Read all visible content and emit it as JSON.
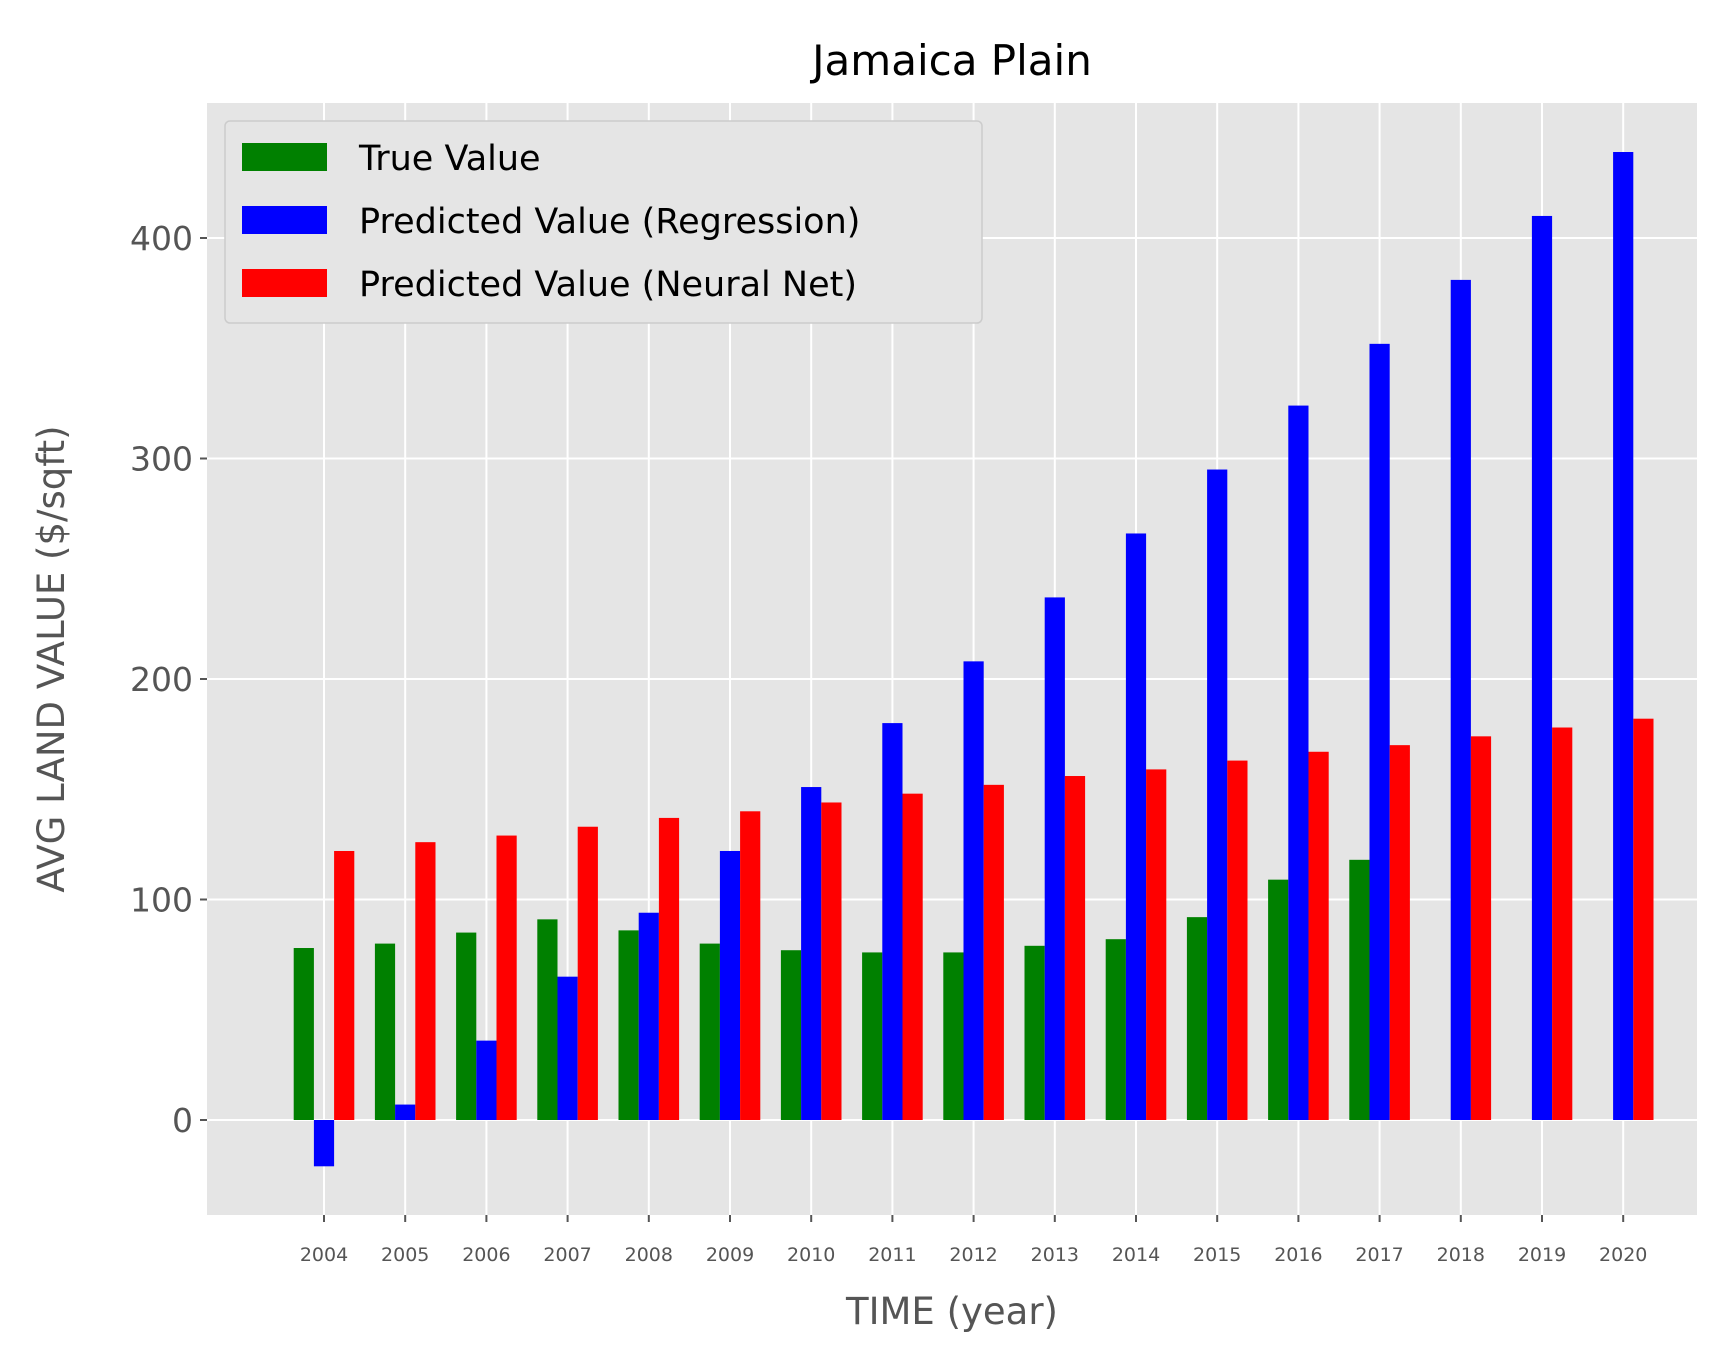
{
  "chart_data": {
    "type": "bar",
    "title": "Jamaica Plain",
    "xlabel": "TIME (year)",
    "ylabel": "AVG LAND VALUE ($/sqft)",
    "categories": [
      "2004",
      "2005",
      "2006",
      "2007",
      "2008",
      "2009",
      "2010",
      "2011",
      "2012",
      "2013",
      "2014",
      "2015",
      "2016",
      "2017",
      "2018",
      "2019",
      "2020"
    ],
    "yticks": [
      0,
      100,
      200,
      300,
      400
    ],
    "ylim": [
      -43,
      461
    ],
    "grid": true,
    "legend_position": "top-left",
    "series": [
      {
        "name": "True Value",
        "color": "#008000",
        "values": [
          78,
          80,
          85,
          91,
          86,
          80,
          77,
          76,
          76,
          79,
          82,
          92,
          109,
          118,
          null,
          null,
          null
        ]
      },
      {
        "name": "Predicted Value (Regression)",
        "color": "#0000ff",
        "values": [
          -21,
          7,
          36,
          65,
          94,
          122,
          151,
          180,
          208,
          237,
          266,
          295,
          324,
          352,
          381,
          410,
          439
        ]
      },
      {
        "name": "Predicted Value (Neural Net)",
        "color": "#ff0000",
        "values": [
          122,
          126,
          129,
          133,
          137,
          140,
          144,
          148,
          152,
          156,
          159,
          163,
          167,
          170,
          174,
          178,
          182
        ]
      }
    ]
  }
}
